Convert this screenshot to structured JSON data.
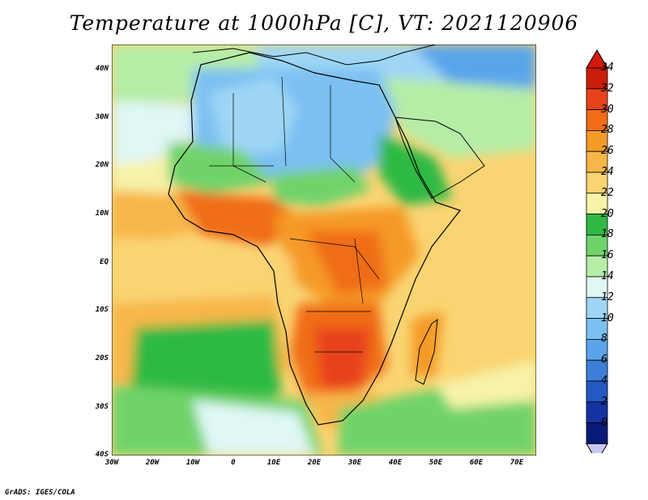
{
  "title": "Temperature at 1000hPa [C], VT: 2021120906",
  "credit": "GrADS: IGES/COLA",
  "map": {
    "projection": "lat-lon",
    "lon_range": [
      -30,
      75
    ],
    "lat_range": [
      -40,
      45
    ],
    "variable": "Temperature at 1000hPa"
  },
  "lat_ticks": [
    "40N",
    "30N",
    "20N",
    "10N",
    "EQ",
    "10S",
    "20S",
    "30S",
    "40S"
  ],
  "lon_ticks": [
    "30W",
    "20W",
    "10W",
    "0",
    "10E",
    "20E",
    "30E",
    "40E",
    "50E",
    "60E",
    "70E"
  ],
  "colorbar": {
    "labels": [
      "34",
      "32",
      "30",
      "28",
      "26",
      "24",
      "22",
      "20",
      "18",
      "16",
      "14",
      "12",
      "10",
      "8",
      "6",
      "4",
      "2",
      "0"
    ],
    "colors": [
      "#c81e0a",
      "#e8421a",
      "#f06d16",
      "#f59a26",
      "#f7b648",
      "#fad472",
      "#f7f3a8",
      "#2fb944",
      "#6fd36b",
      "#b5eda7",
      "#dff7f5",
      "#9fd6f5",
      "#7cc0f2",
      "#5aa5ea",
      "#3b7fd8",
      "#2458c4",
      "#1432a0",
      "#0a1a78"
    ],
    "top_color": "#d4180a",
    "bottom_color": "#c8c8f5"
  }
}
